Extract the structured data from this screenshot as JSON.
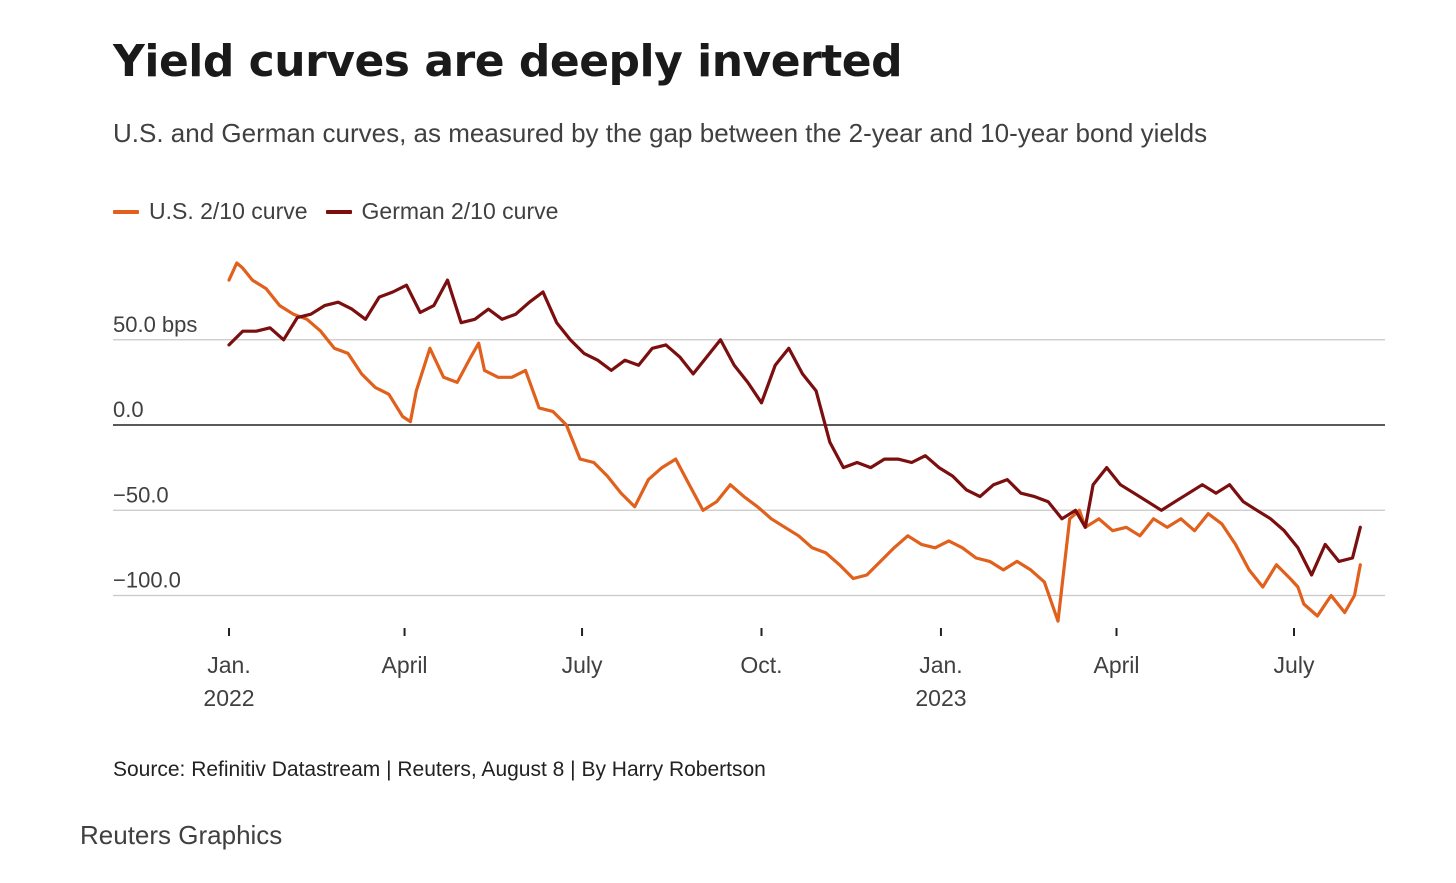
{
  "title": "Yield curves are deeply inverted",
  "subtitle": "U.S. and German curves, as measured by the gap between the 2-year and 10-year bond yields",
  "source": "Source: Refinitiv Datastream | Reuters, August 8 | By Harry Robertson",
  "brand": "Reuters Graphics",
  "colors": {
    "us": "#e0601c",
    "de": "#7b0e0e",
    "grid": "#c8c8c8",
    "zero": "#222222",
    "text": "#404040"
  },
  "chart_data": {
    "type": "line",
    "x_unit": "date",
    "ylim": [
      -120,
      105
    ],
    "ylabel": "",
    "grid": true,
    "legend_position": "top-left",
    "y_ticks": [
      {
        "value": 50,
        "label": "50.0 bps"
      },
      {
        "value": 0,
        "label": "0.0"
      },
      {
        "value": -50,
        "label": "−50.0"
      },
      {
        "value": -100,
        "label": "−100.0"
      }
    ],
    "x_ticks": [
      {
        "date": "2022-01-01",
        "label": "Jan.",
        "sublabel": "2022"
      },
      {
        "date": "2022-04-01",
        "label": "April",
        "sublabel": ""
      },
      {
        "date": "2022-07-01",
        "label": "July",
        "sublabel": ""
      },
      {
        "date": "2022-10-01",
        "label": "Oct.",
        "sublabel": ""
      },
      {
        "date": "2023-01-01",
        "label": "Jan.",
        "sublabel": "2023"
      },
      {
        "date": "2023-04-01",
        "label": "April",
        "sublabel": ""
      },
      {
        "date": "2023-07-01",
        "label": "July",
        "sublabel": ""
      }
    ],
    "series": [
      {
        "name": "U.S. 2/10 curve",
        "color": "#e0601c",
        "x": [
          "2022-01-01",
          "2022-01-05",
          "2022-01-08",
          "2022-01-13",
          "2022-01-20",
          "2022-01-27",
          "2022-02-03",
          "2022-02-10",
          "2022-02-17",
          "2022-02-24",
          "2022-03-03",
          "2022-03-10",
          "2022-03-17",
          "2022-03-24",
          "2022-03-31",
          "2022-04-04",
          "2022-04-07",
          "2022-04-14",
          "2022-04-21",
          "2022-04-28",
          "2022-05-05",
          "2022-05-09",
          "2022-05-12",
          "2022-05-19",
          "2022-05-26",
          "2022-06-02",
          "2022-06-09",
          "2022-06-16",
          "2022-06-23",
          "2022-06-30",
          "2022-07-07",
          "2022-07-14",
          "2022-07-21",
          "2022-07-28",
          "2022-08-04",
          "2022-08-11",
          "2022-08-18",
          "2022-08-25",
          "2022-09-01",
          "2022-09-08",
          "2022-09-15",
          "2022-09-22",
          "2022-09-29",
          "2022-10-06",
          "2022-10-13",
          "2022-10-20",
          "2022-10-27",
          "2022-11-03",
          "2022-11-10",
          "2022-11-17",
          "2022-11-24",
          "2022-12-01",
          "2022-12-08",
          "2022-12-15",
          "2022-12-22",
          "2022-12-29",
          "2023-01-05",
          "2023-01-12",
          "2023-01-19",
          "2023-01-26",
          "2023-02-02",
          "2023-02-09",
          "2023-02-16",
          "2023-02-23",
          "2023-03-02",
          "2023-03-08",
          "2023-03-13",
          "2023-03-16",
          "2023-03-23",
          "2023-03-30",
          "2023-04-06",
          "2023-04-13",
          "2023-04-20",
          "2023-04-27",
          "2023-05-04",
          "2023-05-11",
          "2023-05-18",
          "2023-05-25",
          "2023-06-01",
          "2023-06-08",
          "2023-06-15",
          "2023-06-22",
          "2023-06-29",
          "2023-07-03",
          "2023-07-06",
          "2023-07-13",
          "2023-07-20",
          "2023-07-27",
          "2023-08-01",
          "2023-08-04"
        ],
        "values": [
          85,
          95,
          92,
          85,
          80,
          70,
          65,
          62,
          55,
          45,
          42,
          30,
          22,
          18,
          5,
          2,
          20,
          45,
          28,
          25,
          40,
          48,
          32,
          28,
          28,
          32,
          10,
          8,
          0,
          -20,
          -22,
          -30,
          -40,
          -48,
          -32,
          -25,
          -20,
          -35,
          -50,
          -45,
          -35,
          -42,
          -48,
          -55,
          -60,
          -65,
          -72,
          -75,
          -82,
          -90,
          -88,
          -80,
          -72,
          -65,
          -70,
          -72,
          -68,
          -72,
          -78,
          -80,
          -85,
          -80,
          -85,
          -92,
          -115,
          -55,
          -50,
          -60,
          -55,
          -62,
          -60,
          -65,
          -55,
          -60,
          -55,
          -62,
          -52,
          -58,
          -70,
          -85,
          -95,
          -82,
          -90,
          -95,
          -105,
          -112,
          -100,
          -110,
          -100,
          -82
        ]
      },
      {
        "name": "German 2/10 curve",
        "color": "#7b0e0e",
        "x": [
          "2022-01-01",
          "2022-01-08",
          "2022-01-15",
          "2022-01-22",
          "2022-01-29",
          "2022-02-05",
          "2022-02-12",
          "2022-02-19",
          "2022-02-26",
          "2022-03-05",
          "2022-03-12",
          "2022-03-19",
          "2022-03-26",
          "2022-04-02",
          "2022-04-09",
          "2022-04-16",
          "2022-04-23",
          "2022-04-30",
          "2022-05-07",
          "2022-05-14",
          "2022-05-21",
          "2022-05-28",
          "2022-06-04",
          "2022-06-11",
          "2022-06-18",
          "2022-06-25",
          "2022-07-02",
          "2022-07-09",
          "2022-07-16",
          "2022-07-23",
          "2022-07-30",
          "2022-08-06",
          "2022-08-13",
          "2022-08-20",
          "2022-08-27",
          "2022-09-03",
          "2022-09-10",
          "2022-09-17",
          "2022-09-24",
          "2022-10-01",
          "2022-10-08",
          "2022-10-15",
          "2022-10-22",
          "2022-10-29",
          "2022-11-05",
          "2022-11-12",
          "2022-11-19",
          "2022-11-26",
          "2022-12-03",
          "2022-12-10",
          "2022-12-17",
          "2022-12-24",
          "2022-12-31",
          "2023-01-07",
          "2023-01-14",
          "2023-01-21",
          "2023-01-28",
          "2023-02-04",
          "2023-02-11",
          "2023-02-18",
          "2023-02-25",
          "2023-03-04",
          "2023-03-11",
          "2023-03-16",
          "2023-03-20",
          "2023-03-27",
          "2023-04-03",
          "2023-04-10",
          "2023-04-17",
          "2023-04-24",
          "2023-05-01",
          "2023-05-08",
          "2023-05-15",
          "2023-05-22",
          "2023-05-29",
          "2023-06-05",
          "2023-06-12",
          "2023-06-19",
          "2023-06-26",
          "2023-07-03",
          "2023-07-10",
          "2023-07-17",
          "2023-07-24",
          "2023-07-31",
          "2023-08-04"
        ],
        "values": [
          47,
          55,
          55,
          57,
          50,
          63,
          65,
          70,
          72,
          68,
          62,
          75,
          78,
          82,
          66,
          70,
          85,
          60,
          62,
          68,
          62,
          65,
          72,
          78,
          60,
          50,
          42,
          38,
          32,
          38,
          35,
          45,
          47,
          40,
          30,
          40,
          50,
          35,
          25,
          13,
          35,
          45,
          30,
          20,
          -10,
          -25,
          -22,
          -25,
          -20,
          -20,
          -22,
          -18,
          -25,
          -30,
          -38,
          -42,
          -35,
          -32,
          -40,
          -42,
          -45,
          -55,
          -50,
          -60,
          -35,
          -25,
          -35,
          -40,
          -45,
          -50,
          -45,
          -40,
          -35,
          -40,
          -35,
          -45,
          -50,
          -55,
          -62,
          -72,
          -88,
          -70,
          -80,
          -78,
          -60
        ]
      }
    ]
  }
}
